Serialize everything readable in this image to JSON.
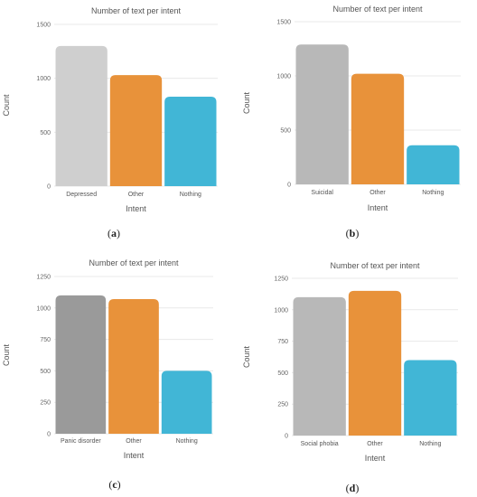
{
  "panels": [
    {
      "caption_letter": "a",
      "chart_data": {
        "type": "bar",
        "title": "Number of text per intent",
        "xlabel": "Intent",
        "ylabel": "Count",
        "categories": [
          "Depressed",
          "Other",
          "Nothing"
        ],
        "values": [
          1300,
          1030,
          830
        ],
        "colors": [
          "#cfcfcf",
          "#e8923a",
          "#41b6d6"
        ],
        "ylim": [
          0,
          1500
        ],
        "yticks": [
          0,
          500,
          1000,
          1500
        ],
        "grid": true
      }
    },
    {
      "caption_letter": "b",
      "chart_data": {
        "type": "bar",
        "title": "Number of text per intent",
        "xlabel": "Intent",
        "ylabel": "Count",
        "categories": [
          "Suicidal",
          "Other",
          "Nothing"
        ],
        "values": [
          1290,
          1020,
          360
        ],
        "colors": [
          "#b8b8b8",
          "#e8923a",
          "#41b6d6"
        ],
        "ylim": [
          0,
          1500
        ],
        "yticks": [
          0,
          500,
          1000,
          1500
        ],
        "grid": true
      }
    },
    {
      "caption_letter": "c",
      "chart_data": {
        "type": "bar",
        "title": "Number of text per intent",
        "xlabel": "Intent",
        "ylabel": "Count",
        "categories": [
          "Panic disorder",
          "Other",
          "Nothing"
        ],
        "values": [
          1100,
          1070,
          500
        ],
        "colors": [
          "#9a9a9a",
          "#e8923a",
          "#41b6d6"
        ],
        "ylim": [
          0,
          1250
        ],
        "yticks": [
          0,
          250,
          500,
          750,
          1000,
          1250
        ],
        "grid": true
      }
    },
    {
      "caption_letter": "d",
      "chart_data": {
        "type": "bar",
        "title": "Number of text per intent",
        "xlabel": "Intent",
        "ylabel": "Count",
        "categories": [
          "Social phobia",
          "Other",
          "Nothing"
        ],
        "values": [
          1100,
          1150,
          600
        ],
        "colors": [
          "#b8b8b8",
          "#e8923a",
          "#41b6d6"
        ],
        "ylim": [
          0,
          1250
        ],
        "yticks": [
          0,
          250,
          500,
          750,
          1000,
          1250
        ],
        "grid": true
      }
    }
  ]
}
